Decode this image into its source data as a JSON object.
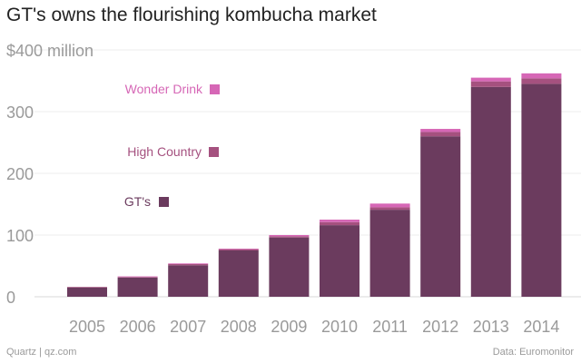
{
  "chart_data": {
    "type": "bar",
    "stacked": true,
    "title": "GT's owns the flourishing kombucha market",
    "y_unit_label": "$400 million",
    "ylim": [
      0,
      400
    ],
    "yticks": [
      0,
      100,
      200,
      300
    ],
    "categories": [
      "2005",
      "2006",
      "2007",
      "2008",
      "2009",
      "2010",
      "2011",
      "2012",
      "2013",
      "2014"
    ],
    "series": [
      {
        "name": "GT's",
        "color": "#6b3b5e",
        "values": [
          15,
          31,
          51,
          75,
          96,
          116,
          141,
          260,
          340,
          345
        ]
      },
      {
        "name": "High Country",
        "color": "#a5517f",
        "values": [
          1,
          1,
          2,
          2,
          2,
          5,
          4,
          7,
          9,
          9
        ]
      },
      {
        "name": "Wonder Drink",
        "color": "#d667b6",
        "values": [
          0,
          1,
          1,
          1,
          2,
          4,
          6,
          5,
          6,
          8
        ]
      }
    ],
    "grid": true,
    "legend_position": "inline-left"
  },
  "footer": {
    "source_left": "Quartz | qz.com",
    "source_right": "Data: Euromonitor"
  }
}
